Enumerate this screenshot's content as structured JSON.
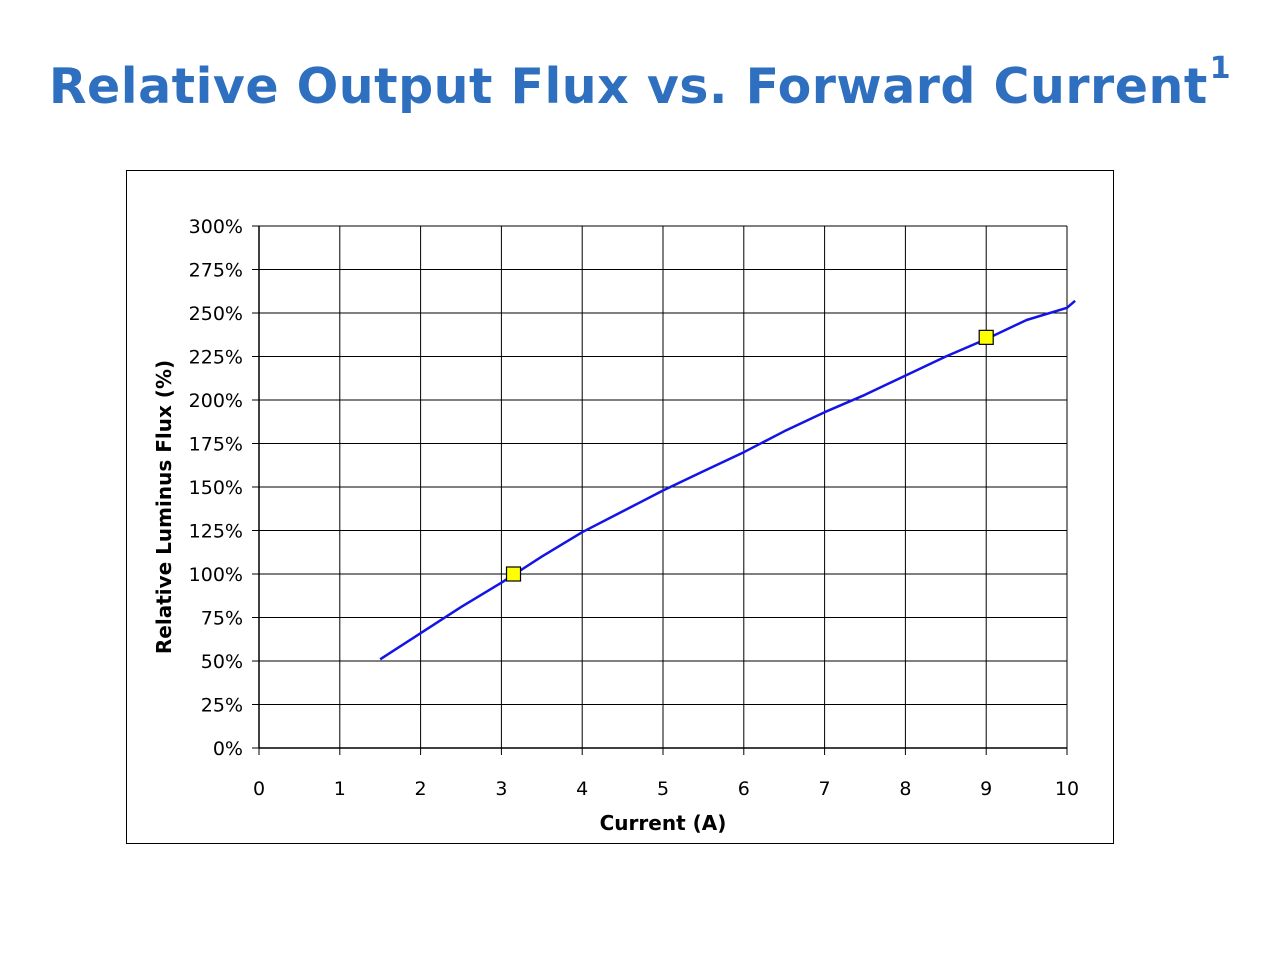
{
  "slide": {
    "title": "Relative Output Flux vs. Forward Current",
    "title_superscript": "1",
    "title_color": "#2f6fbf"
  },
  "chart_data": {
    "type": "line",
    "title": "",
    "xlabel": "Current (A)",
    "ylabel": "Relative Luminus Flux (%)",
    "xlim": [
      0,
      10
    ],
    "ylim": [
      0,
      300
    ],
    "x_ticks": [
      0,
      1,
      2,
      3,
      4,
      5,
      6,
      7,
      8,
      9,
      10
    ],
    "y_ticks": [
      0,
      25,
      50,
      75,
      100,
      125,
      150,
      175,
      200,
      225,
      250,
      275,
      300
    ],
    "y_tick_labels": [
      "0%",
      "25%",
      "50%",
      "75%",
      "100%",
      "125%",
      "150%",
      "175%",
      "200%",
      "225%",
      "250%",
      "275%",
      "300%"
    ],
    "x_tick_labels": [
      "0",
      "1",
      "2",
      "3",
      "4",
      "5",
      "6",
      "7",
      "8",
      "9",
      "10"
    ],
    "grid": true,
    "legend": "none",
    "series": [
      {
        "color": "#1414e6",
        "x": [
          1.5,
          2.0,
          2.5,
          3.0,
          3.5,
          4.0,
          4.5,
          5.0,
          5.5,
          6.0,
          6.5,
          7.0,
          7.5,
          8.0,
          8.5,
          9.0,
          9.5,
          10.0,
          10.1
        ],
        "y": [
          51,
          66,
          81,
          95,
          110,
          124,
          136,
          148,
          159,
          170,
          182,
          193,
          203,
          214,
          225,
          235,
          246,
          253,
          257
        ]
      }
    ],
    "markers": [
      {
        "x": 3.15,
        "y": 100,
        "color": "#ffff00"
      },
      {
        "x": 9.0,
        "y": 236,
        "color": "#ffff00"
      }
    ]
  }
}
